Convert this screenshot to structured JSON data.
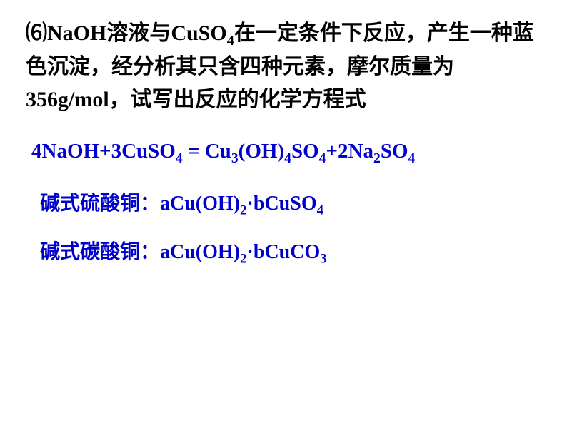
{
  "problem": {
    "marker": "⑹",
    "text_parts": [
      "NaOH溶液与CuSO",
      "在一定条件下反应，产生一种蓝色沉淀，经分析其只含四种元素，摩尔质量为356g/mol，试写出反应的化学方程式"
    ],
    "sub1": "4",
    "text_color": "#000000",
    "fontsize": 30
  },
  "equation": {
    "lhs1": "4NaOH+3CuSO",
    "sub1": "4",
    "eq": " = Cu",
    "sub2": "3",
    "mid1": "(OH)",
    "sub3": "4",
    "mid2": "SO",
    "sub4": "4",
    "mid3": "+2Na",
    "sub5": "2",
    "mid4": "SO",
    "sub6": "4",
    "color": "#0000cc",
    "fontsize": 29
  },
  "line1": {
    "label": "碱式硫酸铜：",
    "f1": "aCu(OH)",
    "s1": "2",
    "dot": "·",
    "f2": "bCuSO",
    "s2": "4",
    "color": "#0000cc",
    "fontsize": 28
  },
  "line2": {
    "label": "碱式碳酸铜：",
    "f1": "aCu(OH)",
    "s1": "2",
    "dot": "·",
    "f2": "bCuCO",
    "s2": "3",
    "color": "#0000cc",
    "fontsize": 28
  },
  "background_color": "#ffffff"
}
